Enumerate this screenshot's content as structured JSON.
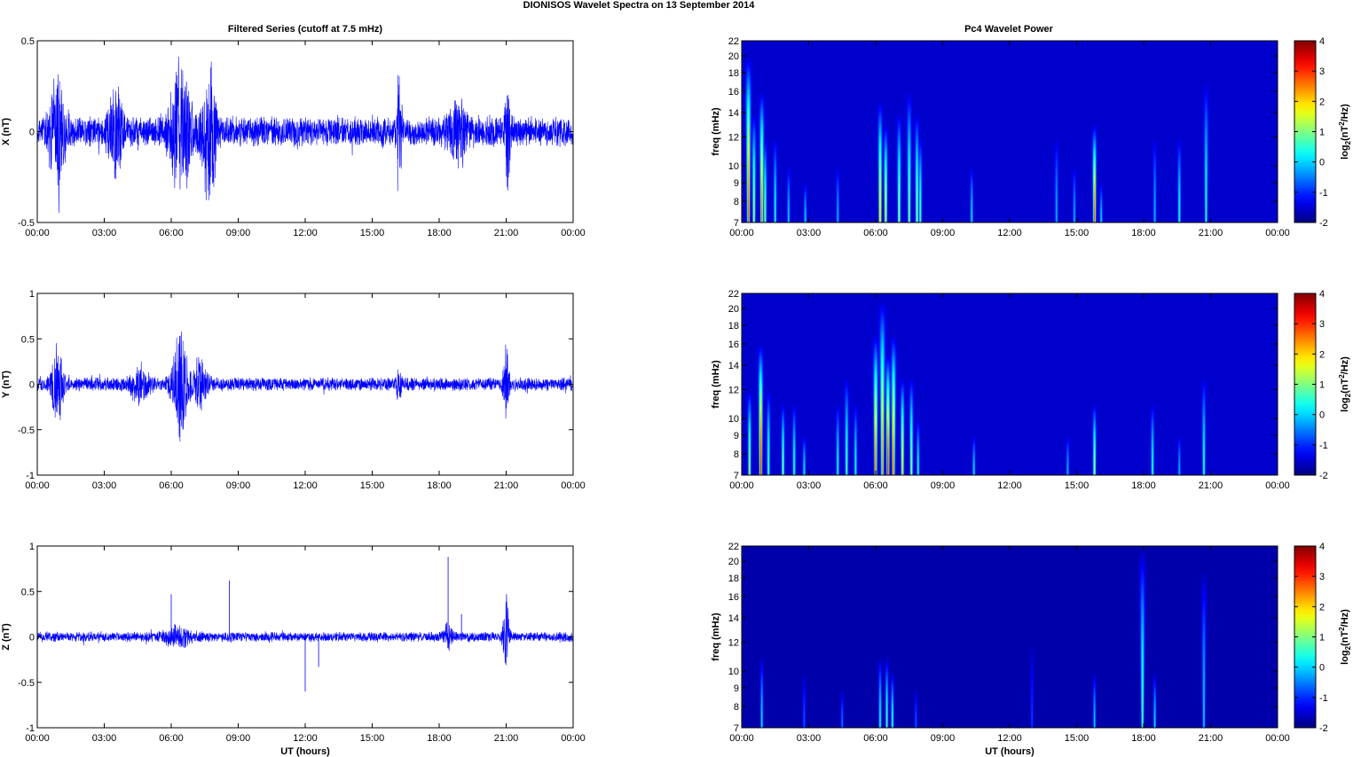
{
  "figure": {
    "title": "DIONISOS Wavelet Spectra on 13 September 2014",
    "left_title": "Filtered Series (cutoff at 7.5 mHz)",
    "right_title": "Pc4 Wavelet Power"
  },
  "chart_data": [
    {
      "type": "line",
      "id": "series-x",
      "ylabel": "X (nT)",
      "xlabel": "",
      "x_ticks": [
        "00:00",
        "03:00",
        "06:00",
        "09:00",
        "12:00",
        "15:00",
        "18:00",
        "21:00",
        "00:00"
      ],
      "xlim": [
        0,
        24
      ],
      "ylim": [
        -0.5,
        0.5
      ],
      "y_ticks": [
        {
          "value": 0.5,
          "label": "0.5"
        },
        {
          "value": 0,
          "label": "0"
        },
        {
          "value": -0.5,
          "label": "-0.5"
        }
      ],
      "color": "#0000ff",
      "baseline_amplitude": 0.09,
      "bursts": [
        {
          "t": 0.9,
          "amp": 0.33,
          "width": 0.35
        },
        {
          "t": 3.5,
          "amp": 0.22,
          "width": 0.3
        },
        {
          "t": 6.4,
          "amp": 0.38,
          "width": 0.5
        },
        {
          "t": 7.7,
          "amp": 0.42,
          "width": 0.3
        },
        {
          "t": 16.2,
          "amp": 0.35,
          "width": 0.12
        },
        {
          "t": 18.8,
          "amp": 0.18,
          "width": 0.4
        },
        {
          "t": 21.1,
          "amp": 0.4,
          "width": 0.12
        }
      ]
    },
    {
      "type": "line",
      "id": "series-y",
      "ylabel": "Y (nT)",
      "xlabel": "",
      "x_ticks": [
        "00:00",
        "03:00",
        "06:00",
        "09:00",
        "12:00",
        "15:00",
        "18:00",
        "21:00",
        "00:00"
      ],
      "xlim": [
        0,
        24
      ],
      "ylim": [
        -1,
        1
      ],
      "y_ticks": [
        {
          "value": 1,
          "label": "1"
        },
        {
          "value": 0.5,
          "label": "0.5"
        },
        {
          "value": 0,
          "label": "0"
        },
        {
          "value": -0.5,
          "label": "-0.5"
        },
        {
          "value": -1,
          "label": "-1"
        }
      ],
      "color": "#0000ff",
      "baseline_amplitude": 0.08,
      "bursts": [
        {
          "t": 0.9,
          "amp": 0.5,
          "width": 0.25
        },
        {
          "t": 4.6,
          "amp": 0.22,
          "width": 0.4
        },
        {
          "t": 6.4,
          "amp": 0.62,
          "width": 0.35
        },
        {
          "t": 7.3,
          "amp": 0.3,
          "width": 0.3
        },
        {
          "t": 16.2,
          "amp": 0.2,
          "width": 0.12
        },
        {
          "t": 21.0,
          "amp": 0.5,
          "width": 0.12
        }
      ]
    },
    {
      "type": "line",
      "id": "series-z",
      "ylabel": "Z (nT)",
      "xlabel": "UT (hours)",
      "x_ticks": [
        "00:00",
        "03:00",
        "06:00",
        "09:00",
        "12:00",
        "15:00",
        "18:00",
        "21:00",
        "00:00"
      ],
      "xlim": [
        0,
        24
      ],
      "ylim": [
        -1,
        1
      ],
      "y_ticks": [
        {
          "value": 1,
          "label": "1"
        },
        {
          "value": 0.5,
          "label": "0.5"
        },
        {
          "value": 0,
          "label": "0"
        },
        {
          "value": -0.5,
          "label": "-0.5"
        },
        {
          "value": -1,
          "label": "-1"
        }
      ],
      "color": "#0000ff",
      "baseline_amplitude": 0.06,
      "bursts": [
        {
          "t": 6.3,
          "amp": 0.1,
          "width": 0.6
        },
        {
          "t": 18.4,
          "amp": 0.2,
          "width": 0.15
        },
        {
          "t": 21.0,
          "amp": 0.55,
          "width": 0.12
        }
      ],
      "spikes": [
        {
          "t": 6.0,
          "value": 0.47
        },
        {
          "t": 8.6,
          "value": 0.62
        },
        {
          "t": 12.0,
          "value": -0.6
        },
        {
          "t": 12.6,
          "value": -0.33
        },
        {
          "t": 18.4,
          "value": 0.88
        },
        {
          "t": 19.0,
          "value": 0.25
        }
      ]
    },
    {
      "type": "heatmap",
      "id": "wavelet-x",
      "ylabel": "freq (mHz)",
      "xlabel": "",
      "x_ticks": [
        "00:00",
        "03:00",
        "06:00",
        "09:00",
        "12:00",
        "15:00",
        "18:00",
        "21:00",
        "00:00"
      ],
      "xlim": [
        0,
        24
      ],
      "ylim": [
        7,
        22
      ],
      "y_scale": "log",
      "y_ticks": [
        7,
        8,
        9,
        10,
        12,
        14,
        16,
        18,
        20,
        22
      ],
      "colorbar_label": "log2(nT2/Hz)",
      "clim": [
        -2,
        4
      ],
      "colorbar_ticks": [
        4,
        3,
        2,
        1,
        0,
        -1,
        -2
      ],
      "background": -1.55,
      "streaks": [
        {
          "t": 0.3,
          "peak": 3.0,
          "top": 20
        },
        {
          "t": 0.55,
          "peak": 1.6,
          "top": 14
        },
        {
          "t": 0.9,
          "peak": 2.8,
          "top": 16
        },
        {
          "t": 1.05,
          "peak": 1.2,
          "top": 12
        },
        {
          "t": 1.5,
          "peak": 0.6,
          "top": 12
        },
        {
          "t": 2.1,
          "peak": 0.2,
          "top": 10
        },
        {
          "t": 2.85,
          "peak": 0.2,
          "top": 9
        },
        {
          "t": 4.3,
          "peak": 0.0,
          "top": 10
        },
        {
          "t": 6.2,
          "peak": 2.3,
          "top": 15
        },
        {
          "t": 6.45,
          "peak": 2.1,
          "top": 13
        },
        {
          "t": 7.05,
          "peak": 1.5,
          "top": 14
        },
        {
          "t": 7.5,
          "peak": 1.3,
          "top": 16
        },
        {
          "t": 7.85,
          "peak": 1.4,
          "top": 14
        },
        {
          "t": 8.0,
          "peak": 1.0,
          "top": 12
        },
        {
          "t": 10.3,
          "peak": 0.3,
          "top": 10
        },
        {
          "t": 14.1,
          "peak": 0.0,
          "top": 12
        },
        {
          "t": 14.9,
          "peak": 0.0,
          "top": 10
        },
        {
          "t": 15.8,
          "peak": 3.0,
          "top": 13
        },
        {
          "t": 16.1,
          "peak": 0.2,
          "top": 9
        },
        {
          "t": 18.5,
          "peak": 0.0,
          "top": 12
        },
        {
          "t": 19.6,
          "peak": 0.6,
          "top": 12
        },
        {
          "t": 20.8,
          "peak": 0.7,
          "top": 17
        }
      ]
    },
    {
      "type": "heatmap",
      "id": "wavelet-y",
      "ylabel": "freq (mHz)",
      "xlabel": "",
      "x_ticks": [
        "00:00",
        "03:00",
        "06:00",
        "09:00",
        "12:00",
        "15:00",
        "18:00",
        "21:00",
        "00:00"
      ],
      "xlim": [
        0,
        24
      ],
      "ylim": [
        7,
        22
      ],
      "y_scale": "log",
      "y_ticks": [
        7,
        8,
        9,
        10,
        12,
        14,
        16,
        18,
        20,
        22
      ],
      "colorbar_label": "log2(nT2/Hz)",
      "clim": [
        -2,
        4
      ],
      "colorbar_ticks": [
        4,
        3,
        2,
        1,
        0,
        -1,
        -2
      ],
      "background": -1.55,
      "streaks": [
        {
          "t": 0.35,
          "peak": 1.6,
          "top": 12
        },
        {
          "t": 0.85,
          "peak": 3.5,
          "top": 16
        },
        {
          "t": 1.2,
          "peak": 1.0,
          "top": 12
        },
        {
          "t": 1.85,
          "peak": 1.3,
          "top": 11
        },
        {
          "t": 2.35,
          "peak": 0.8,
          "top": 11
        },
        {
          "t": 2.8,
          "peak": 0.4,
          "top": 9
        },
        {
          "t": 4.3,
          "peak": 0.6,
          "top": 11
        },
        {
          "t": 4.7,
          "peak": 1.0,
          "top": 13
        },
        {
          "t": 5.1,
          "peak": 0.6,
          "top": 11
        },
        {
          "t": 6.0,
          "peak": 3.0,
          "top": 17
        },
        {
          "t": 6.3,
          "peak": 2.6,
          "top": 21
        },
        {
          "t": 6.55,
          "peak": 3.5,
          "top": 15
        },
        {
          "t": 6.8,
          "peak": 3.0,
          "top": 17
        },
        {
          "t": 7.2,
          "peak": 2.2,
          "top": 13
        },
        {
          "t": 7.6,
          "peak": 1.5,
          "top": 13
        },
        {
          "t": 7.9,
          "peak": 0.6,
          "top": 10
        },
        {
          "t": 10.4,
          "peak": 0.3,
          "top": 9
        },
        {
          "t": 14.6,
          "peak": 0.0,
          "top": 9
        },
        {
          "t": 15.8,
          "peak": 1.6,
          "top": 11
        },
        {
          "t": 18.4,
          "peak": 0.7,
          "top": 11
        },
        {
          "t": 19.6,
          "peak": 0.0,
          "top": 9
        },
        {
          "t": 20.7,
          "peak": 0.7,
          "top": 13
        }
      ]
    },
    {
      "type": "heatmap",
      "id": "wavelet-z",
      "ylabel": "freq (mHz)",
      "xlabel": "UT (hours)",
      "x_ticks": [
        "00:00",
        "03:00",
        "06:00",
        "09:00",
        "12:00",
        "15:00",
        "18:00",
        "21:00",
        "00:00"
      ],
      "xlim": [
        0,
        24
      ],
      "ylim": [
        7,
        22
      ],
      "y_scale": "log",
      "y_ticks": [
        7,
        8,
        9,
        10,
        12,
        14,
        16,
        18,
        20,
        22
      ],
      "colorbar_label": "log2(nT2/Hz)",
      "clim": [
        -2,
        4
      ],
      "colorbar_ticks": [
        4,
        3,
        2,
        1,
        0,
        -1,
        -2
      ],
      "background": -1.75,
      "streaks": [
        {
          "t": 0.9,
          "peak": 0.3,
          "top": 11
        },
        {
          "t": 2.8,
          "peak": -0.6,
          "top": 10
        },
        {
          "t": 4.5,
          "peak": -0.4,
          "top": 9
        },
        {
          "t": 6.2,
          "peak": 0.6,
          "top": 11
        },
        {
          "t": 6.5,
          "peak": 0.9,
          "top": 11
        },
        {
          "t": 6.75,
          "peak": 0.8,
          "top": 10
        },
        {
          "t": 7.8,
          "peak": -0.6,
          "top": 9
        },
        {
          "t": 13.0,
          "peak": -0.8,
          "top": 12
        },
        {
          "t": 15.8,
          "peak": 0.2,
          "top": 10
        },
        {
          "t": 17.95,
          "peak": 1.0,
          "top": 22
        },
        {
          "t": 18.5,
          "peak": 0.3,
          "top": 10
        },
        {
          "t": 20.7,
          "peak": 0.2,
          "top": 19
        }
      ]
    }
  ]
}
